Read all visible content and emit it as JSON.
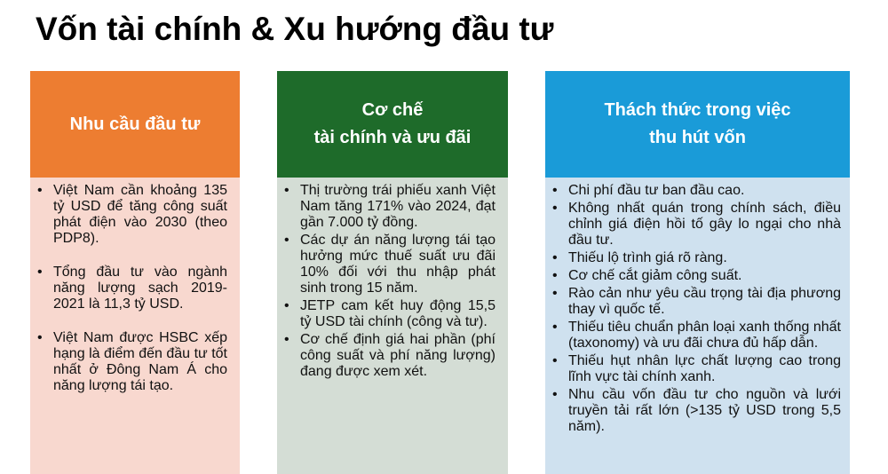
{
  "title": "Vốn tài chính & Xu hướng đầu tư",
  "columns": [
    {
      "heading": "Nhu cầu đầu tư",
      "color": "#ED7D31",
      "items": [
        "Việt Nam cần khoảng 135 tỷ USD để tăng công suất phát điện vào 2030 (theo PDP8).",
        "Tổng đầu tư vào ngành năng lượng sạch 2019-2021 là 11,3 tỷ USD.",
        "Việt Nam được HSBC xếp hạng là điểm đến đầu tư tốt nhất ở Đông Nam Á cho năng lượng tái tạo."
      ]
    },
    {
      "heading": "Cơ chế\ntài chính và ưu đãi",
      "color": "#1E6B2A",
      "items": [
        "Thị trường trái phiếu xanh Việt Nam tăng 171% vào 2024, đạt gần 7.000 tỷ đồng.",
        "Các dự án năng lượng tái tạo hưởng mức thuế suất ưu đãi 10% đối với thu nhập phát sinh trong 15 năm.",
        "JETP cam kết huy động 15,5 tỷ USD tài chính (công và tư).",
        "Cơ chế định giá hai phần (phí công suất và phí năng lượng) đang được xem xét."
      ]
    },
    {
      "heading": "Thách thức trong việc\nthu hút vốn",
      "color": "#1A9BD8",
      "items": [
        "Chi phí đầu tư ban đầu cao.",
        "Không nhất quán trong chính sách, điều chỉnh giá điện hồi tố gây lo ngại cho nhà đầu tư.",
        "Thiếu lộ trình giá rõ ràng.",
        "Cơ chế cắt giảm công suất.",
        "Rào cản như yêu cầu trọng tài địa phương thay vì quốc tế.",
        "Thiếu tiêu chuẩn phân loại xanh thống nhất (taxonomy) và ưu đãi chưa đủ hấp dẫn.",
        "Thiếu hụt nhân lực chất lượng cao trong lĩnh vực tài chính xanh.",
        "Nhu cầu vốn đầu tư cho nguồn và lưới truyền tải rất lớn (>135 tỷ USD trong 5,5 năm)."
      ]
    }
  ]
}
